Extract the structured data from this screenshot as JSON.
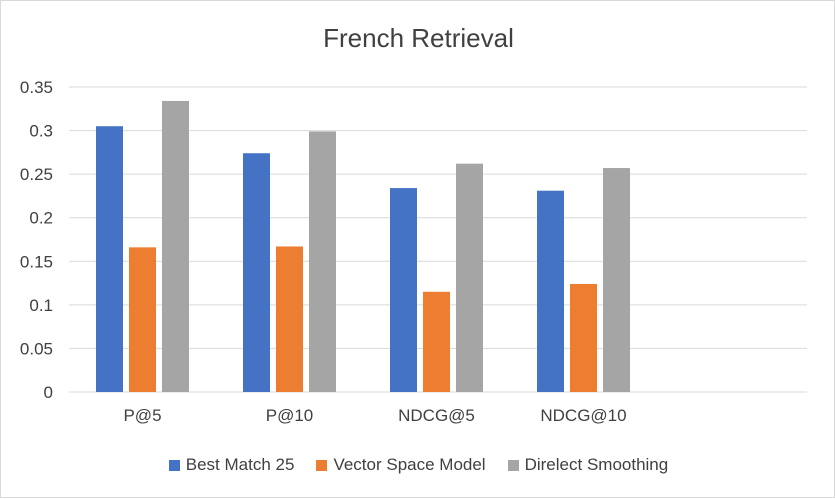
{
  "chart_data": {
    "type": "bar",
    "title": "French Retrieval",
    "xlabel": "",
    "ylabel": "",
    "categories": [
      "P@5",
      "P@10",
      "NDCG@5",
      "NDCG@10"
    ],
    "series": [
      {
        "name": "Best Match 25",
        "color": "#4472c4",
        "values": [
          0.305,
          0.274,
          0.234,
          0.231
        ]
      },
      {
        "name": "Vector Space Model",
        "color": "#ed7d31",
        "values": [
          0.166,
          0.167,
          0.115,
          0.124
        ]
      },
      {
        "name": "Direlect Smoothing",
        "color": "#a5a5a5",
        "values": [
          0.334,
          0.299,
          0.262,
          0.257
        ]
      }
    ],
    "ylim": [
      0,
      0.35
    ],
    "yticks": [
      "0",
      "0.05",
      "0.1",
      "0.15",
      "0.2",
      "0.25",
      "0.3",
      "0.35"
    ],
    "grid": true,
    "legend": "bottom"
  }
}
